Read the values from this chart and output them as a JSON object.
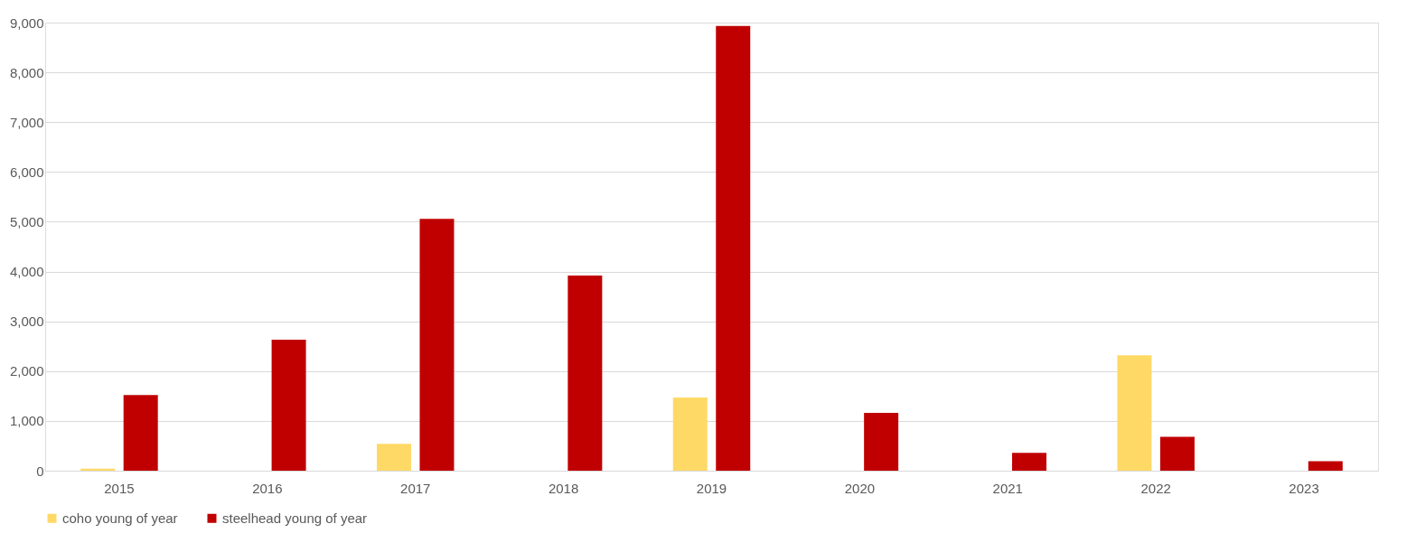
{
  "chart_data": {
    "type": "bar",
    "categories": [
      "2015",
      "2016",
      "2017",
      "2018",
      "2019",
      "2020",
      "2021",
      "2022",
      "2023"
    ],
    "series": [
      {
        "name": "coho young of year",
        "color": "#ffd966",
        "values": [
          40,
          0,
          540,
          0,
          1470,
          0,
          0,
          2320,
          0
        ]
      },
      {
        "name": "steelhead young of year",
        "color": "#c00000",
        "values": [
          1520,
          2630,
          5060,
          3920,
          8930,
          1160,
          360,
          680,
          190
        ]
      }
    ],
    "ylim": [
      0,
      9000
    ],
    "yticks": [
      {
        "value": 0,
        "label": "0"
      },
      {
        "value": 1000,
        "label": "1,000"
      },
      {
        "value": 2000,
        "label": "2,000"
      },
      {
        "value": 3000,
        "label": "3,000"
      },
      {
        "value": 4000,
        "label": "4,000"
      },
      {
        "value": 5000,
        "label": "5,000"
      },
      {
        "value": 6000,
        "label": "6,000"
      },
      {
        "value": 7000,
        "label": "7,000"
      },
      {
        "value": 8000,
        "label": "8,000"
      },
      {
        "value": 9000,
        "label": "9,000"
      }
    ],
    "grid": "y",
    "legend": "bottom"
  }
}
